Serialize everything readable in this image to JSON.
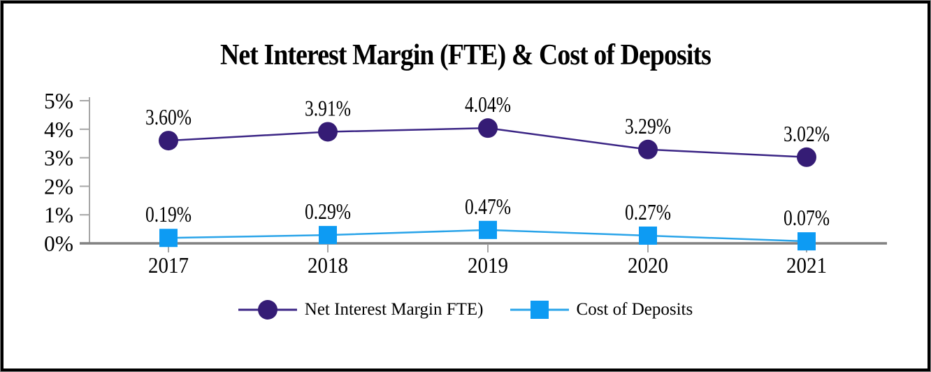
{
  "chart_data": {
    "type": "line",
    "title": "Net Interest Margin (FTE) & Cost of Deposits",
    "categories": [
      "2017",
      "2018",
      "2019",
      "2020",
      "2021"
    ],
    "series": [
      {
        "name": "Net Interest Margin FTE)",
        "values": [
          3.6,
          3.91,
          4.04,
          3.29,
          3.02
        ],
        "labels": [
          "3.60%",
          "3.91%",
          "4.04%",
          "3.29%",
          "3.02%"
        ],
        "marker": "circle",
        "line_color": "#3b2585",
        "marker_color": "#351c75"
      },
      {
        "name": "Cost of Deposits",
        "values": [
          0.19,
          0.29,
          0.47,
          0.27,
          0.07
        ],
        "labels": [
          "0.19%",
          "0.29%",
          "0.47%",
          "0.27%",
          "0.07%"
        ],
        "marker": "square",
        "line_color": "#2aa4e9",
        "marker_color": "#0d9bf3"
      }
    ],
    "yticks": [
      "0%",
      "1%",
      "2%",
      "3%",
      "4%",
      "5%"
    ],
    "ylim": [
      0,
      5
    ],
    "grid": false,
    "legend_position": "bottom",
    "axis_color": "#808080",
    "tick_color": "#a6a6a6",
    "text_color": "#000000"
  }
}
